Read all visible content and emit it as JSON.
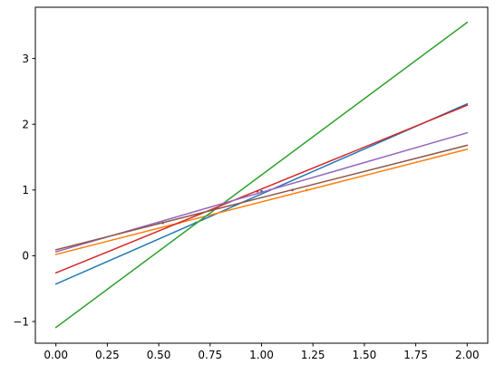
{
  "chart_data": {
    "type": "line",
    "title": "",
    "xlabel": "",
    "ylabel": "",
    "xlim": [
      -0.1,
      2.1
    ],
    "ylim": [
      -1.33,
      3.78
    ],
    "grid": false,
    "legend": "none",
    "xticks": [
      0.0,
      0.25,
      0.5,
      0.75,
      1.0,
      1.25,
      1.5,
      1.75,
      2.0
    ],
    "xtick_labels": [
      "0.00",
      "0.25",
      "0.50",
      "0.75",
      "1.00",
      "1.25",
      "1.50",
      "1.75",
      "2.00"
    ],
    "yticks": [
      -1,
      0,
      1,
      2,
      3
    ],
    "ytick_labels": [
      "−1",
      "0",
      "1",
      "2",
      "3"
    ],
    "series": [
      {
        "color": "#1f77b4",
        "x": [
          0,
          2
        ],
        "y": [
          -0.43,
          2.31
        ],
        "points": [
          {
            "x": 1.0,
            "y": 0.98
          }
        ]
      },
      {
        "color": "#ff7f0e",
        "x": [
          0,
          2
        ],
        "y": [
          0.02,
          1.62
        ],
        "points": [
          {
            "x": 0.6,
            "y": 0.5
          },
          {
            "x": 1.22,
            "y": 1.0
          }
        ]
      },
      {
        "color": "#2ca02c",
        "x": [
          0,
          2
        ],
        "y": [
          -1.09,
          3.55
        ],
        "points": [
          {
            "x": 0.68,
            "y": 0.5
          }
        ]
      },
      {
        "color": "#d62728",
        "x": [
          0,
          2
        ],
        "y": [
          -0.26,
          2.29
        ],
        "points": [
          {
            "x": 0.98,
            "y": 0.98
          }
        ]
      },
      {
        "color": "#9467bd",
        "x": [
          0,
          2
        ],
        "y": [
          0.06,
          1.87
        ],
        "points": [
          {
            "x": 0.5,
            "y": 0.5
          },
          {
            "x": 1.04,
            "y": 1.0
          }
        ]
      },
      {
        "color": "#8c564b",
        "x": [
          0,
          2
        ],
        "y": [
          0.09,
          1.68
        ],
        "points": [
          {
            "x": 0.52,
            "y": 0.5
          },
          {
            "x": 1.15,
            "y": 1.0
          }
        ]
      }
    ]
  }
}
